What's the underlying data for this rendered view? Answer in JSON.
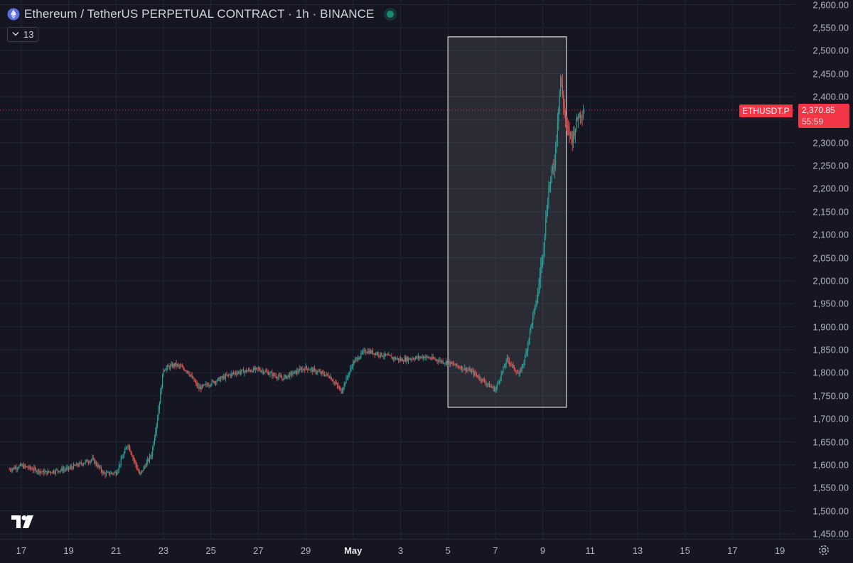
{
  "header": {
    "title": "Ethereum / TetherUS PERPETUAL CONTRACT · 1h · BINANCE",
    "indicator_count": "13"
  },
  "price_axis": {
    "ticks": [
      "2,600.00",
      "2,550.00",
      "2,500.00",
      "2,450.00",
      "2,400.00",
      "2,350.00",
      "2,300.00",
      "2,250.00",
      "2,200.00",
      "2,150.00",
      "2,100.00",
      "2,050.00",
      "2,000.00",
      "1,950.00",
      "1,900.00",
      "1,850.00",
      "1,800.00",
      "1,750.00",
      "1,700.00",
      "1,650.00",
      "1,600.00",
      "1,550.00",
      "1,500.00",
      "1,450.00"
    ]
  },
  "time_axis": {
    "ticks": [
      "17",
      "19",
      "21",
      "23",
      "25",
      "27",
      "29",
      "May",
      "3",
      "5",
      "7",
      "9",
      "11",
      "13",
      "15",
      "17",
      "19"
    ]
  },
  "last_price": {
    "symbol": "ETHUSDT.P",
    "price": "2,370.85",
    "countdown": "55:59"
  },
  "colors": {
    "background": "#151622",
    "grid": "#232634",
    "up": "#26a69a",
    "down": "#ef5350",
    "last_price_line": "#f23645",
    "highlight_box": "#d8d9de"
  },
  "icons": {
    "symbol": "ethereum-icon",
    "indicators": "chevron-down-icon",
    "logo": "tradingview-logo",
    "settings": "gear-icon"
  },
  "chart_data": {
    "type": "candlestick",
    "title": "Ethereum / TetherUS PERPETUAL CONTRACT · 1h · BINANCE",
    "interval": "1h",
    "x_labels": [
      "17",
      "19",
      "21",
      "23",
      "25",
      "27",
      "29",
      "May",
      "3",
      "5",
      "7",
      "9",
      "11",
      "13",
      "15",
      "17",
      "19"
    ],
    "x_range": [
      "Apr 16 12:00",
      "May 20"
    ],
    "ylim": [
      1430,
      2610
    ],
    "y_scale": "linear",
    "grid": true,
    "last_price": 2370.85,
    "highlight_range": {
      "start": "May 5",
      "end": "May 10",
      "price_low": 1725,
      "price_high": 2530
    },
    "series": [
      {
        "name": "ETHUSDT.P",
        "approx_path": [
          {
            "t": "Apr 16 12:00",
            "close": 1590
          },
          {
            "t": "Apr 17",
            "close": 1598
          },
          {
            "t": "Apr 18",
            "close": 1583
          },
          {
            "t": "Apr 19",
            "close": 1592
          },
          {
            "t": "Apr 20",
            "close": 1612
          },
          {
            "t": "Apr 20 12:00",
            "close": 1580
          },
          {
            "t": "Apr 21",
            "close": 1583
          },
          {
            "t": "Apr 21 12:00",
            "close": 1645
          },
          {
            "t": "Apr 22",
            "close": 1578
          },
          {
            "t": "Apr 22 12:00",
            "close": 1623
          },
          {
            "t": "Apr 22 18:00",
            "close": 1703
          },
          {
            "t": "Apr 23",
            "close": 1808
          },
          {
            "t": "Apr 23 12:00",
            "close": 1818
          },
          {
            "t": "Apr 24",
            "close": 1805
          },
          {
            "t": "Apr 24 12:00",
            "close": 1766
          },
          {
            "t": "Apr 25",
            "close": 1778
          },
          {
            "t": "Apr 26",
            "close": 1800
          },
          {
            "t": "Apr 27",
            "close": 1808
          },
          {
            "t": "Apr 28",
            "close": 1788
          },
          {
            "t": "Apr 29",
            "close": 1811
          },
          {
            "t": "Apr 30",
            "close": 1793
          },
          {
            "t": "Apr 30 12:00",
            "close": 1760
          },
          {
            "t": "May 1",
            "close": 1822
          },
          {
            "t": "May 1 12:00",
            "close": 1848
          },
          {
            "t": "May 2",
            "close": 1842
          },
          {
            "t": "May 3",
            "close": 1828
          },
          {
            "t": "May 4",
            "close": 1835
          },
          {
            "t": "May 5",
            "close": 1822
          },
          {
            "t": "May 6",
            "close": 1803
          },
          {
            "t": "May 6 18:00",
            "close": 1772
          },
          {
            "t": "May 7",
            "close": 1763
          },
          {
            "t": "May 7 12:00",
            "close": 1830
          },
          {
            "t": "May 8",
            "close": 1795
          },
          {
            "t": "May 8 06:00",
            "close": 1832
          },
          {
            "t": "May 8 12:00",
            "close": 1900
          },
          {
            "t": "May 8 18:00",
            "close": 1960
          },
          {
            "t": "May 9",
            "close": 2060
          },
          {
            "t": "May 9 06:00",
            "close": 2200
          },
          {
            "t": "May 9 12:00",
            "close": 2260
          },
          {
            "t": "May 9 18:00",
            "close": 2440
          },
          {
            "t": "May 10",
            "close": 2330
          },
          {
            "t": "May 10 06:00",
            "close": 2310
          },
          {
            "t": "May 10 12:00",
            "close": 2360
          },
          {
            "t": "May 10 18:00",
            "close": 2370.85
          }
        ]
      }
    ]
  }
}
